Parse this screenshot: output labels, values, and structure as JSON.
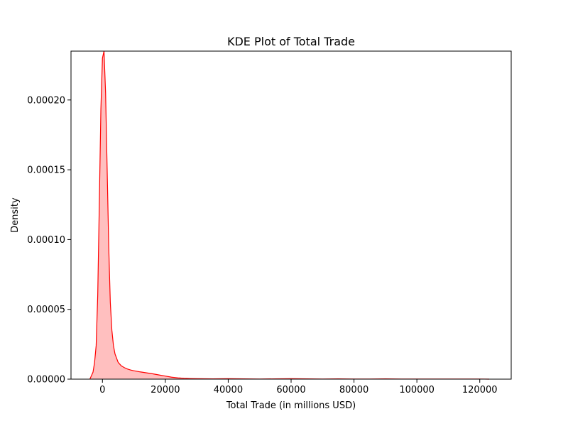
{
  "chart_data": {
    "type": "area",
    "title": "KDE Plot of Total Trade",
    "xlabel": "Total Trade (in millions USD)",
    "ylabel": "Density",
    "xlim": [
      -10000,
      130000
    ],
    "ylim": [
      0,
      0.000235
    ],
    "grid": false,
    "legend": "none",
    "line_color": "#ff0000",
    "fill_color": "#ffbfbf",
    "x_ticks": [
      {
        "value": 0,
        "label": "0"
      },
      {
        "value": 20000,
        "label": "20000"
      },
      {
        "value": 40000,
        "label": "40000"
      },
      {
        "value": 60000,
        "label": "60000"
      },
      {
        "value": 80000,
        "label": "80000"
      },
      {
        "value": 100000,
        "label": "100000"
      },
      {
        "value": 120000,
        "label": "120000"
      }
    ],
    "y_ticks": [
      {
        "value": 0,
        "label": "0.00000"
      },
      {
        "value": 5e-05,
        "label": "0.00005"
      },
      {
        "value": 0.0001,
        "label": "0.00010"
      },
      {
        "value": 0.00015,
        "label": "0.00015"
      },
      {
        "value": 0.0002,
        "label": "0.00020"
      }
    ],
    "series": [
      {
        "x": [
          -4000,
          -3000,
          -2500,
          -2000,
          -1500,
          -1000,
          -500,
          0,
          500,
          1000,
          1500,
          2000,
          2500,
          3000,
          3500,
          4000,
          5000,
          6000,
          7000,
          8000,
          9000,
          10000,
          12000,
          14000,
          16000,
          18000,
          20000,
          22000,
          24000,
          26000,
          28000,
          30000,
          35000,
          40000,
          45000,
          50000,
          55000,
          60000,
          65000,
          70000,
          75000,
          80000,
          85000,
          90000,
          95000,
          100000,
          105000,
          110000,
          115000,
          120000,
          123000
        ],
        "y": [
          0,
          5e-06,
          1.2e-05,
          2.4e-05,
          6e-05,
          0.000125,
          0.000193,
          0.00023,
          0.000235,
          0.000205,
          0.00015,
          9.5e-05,
          5.5e-05,
          3.5e-05,
          2.4e-05,
          1.8e-05,
          1.2e-05,
          9.5e-06,
          8.2e-06,
          7.2e-06,
          6.5e-06,
          6e-06,
          5.2e-06,
          4.5e-06,
          3.8e-06,
          3e-06,
          2.2e-06,
          1.4e-06,
          9e-07,
          6e-07,
          4e-07,
          3e-07,
          2e-07,
          3e-07,
          2e-07,
          1e-07,
          2e-07,
          3e-07,
          2e-07,
          1e-07,
          2e-07,
          1e-07,
          1e-07,
          2e-07,
          1e-07,
          1e-07,
          1e-07,
          1e-07,
          1e-07,
          1e-07,
          0
        ]
      }
    ]
  }
}
